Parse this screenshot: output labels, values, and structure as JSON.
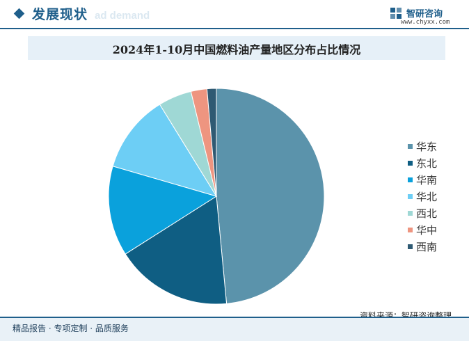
{
  "header": {
    "section_title": "发展现状",
    "section_subtitle": "ad demand",
    "brand_name": "智研咨询",
    "brand_url": "www.chyxx.com"
  },
  "colors": {
    "primary": "#1f5f8b"
  },
  "chart_data": {
    "type": "pie",
    "title": "2024年1-10月中国燃料油产量地区分布占比情况",
    "slices": [
      {
        "name": "华东",
        "value": 48.5,
        "color": "#5b93ab"
      },
      {
        "name": "东北",
        "value": 17.5,
        "color": "#0f5e83"
      },
      {
        "name": "华南",
        "value": 13.5,
        "color": "#0aa1dc"
      },
      {
        "name": "华北",
        "value": 11.7,
        "color": "#6dcef5"
      },
      {
        "name": "西北",
        "value": 5.0,
        "color": "#9fd8d5"
      },
      {
        "name": "华中",
        "value": 2.4,
        "color": "#ee9580"
      },
      {
        "name": "西南",
        "value": 1.4,
        "color": "#2f5a73"
      }
    ],
    "legend_position": "right",
    "start_angle": "top",
    "direction": "clockwise"
  },
  "source": "资料来源：智研咨询整理",
  "footer": "精品报告 · 专项定制 · 品质服务"
}
